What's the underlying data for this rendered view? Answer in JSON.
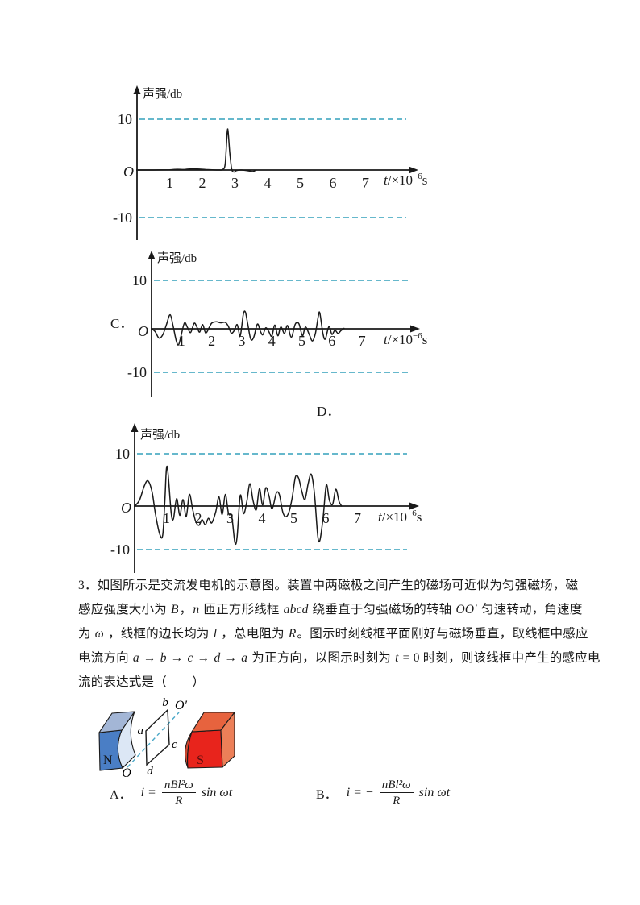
{
  "option_labels": {
    "c": "C．",
    "d": "D．"
  },
  "axis_text": {
    "y_label": "声强/db",
    "x_prefix": "t",
    "x_mid": "/×10",
    "x_sup": "−6",
    "x_unit": "s",
    "origin": "O"
  },
  "colors": {
    "dash": "#33a0bc",
    "ink": "#1a1a1a"
  },
  "chart_data": [
    {
      "type": "line",
      "id": "waveform-top",
      "option": "",
      "ylabel": "声强/db",
      "xlabel": "t/×10⁻⁶s",
      "x_ticks": [
        1,
        2,
        3,
        4,
        5,
        6,
        7
      ],
      "ref_lines": [
        10,
        -10
      ],
      "xlim": [
        0,
        7.6
      ],
      "ylim": [
        -13,
        13
      ],
      "points": [
        [
          0,
          0
        ],
        [
          0.5,
          0
        ],
        [
          1.0,
          0.05
        ],
        [
          1.2,
          0.15
        ],
        [
          1.45,
          0.1
        ],
        [
          1.6,
          0.2
        ],
        [
          1.85,
          0.2
        ],
        [
          2.1,
          0.1
        ],
        [
          2.3,
          0.05
        ],
        [
          2.5,
          0
        ],
        [
          2.62,
          0.1
        ],
        [
          2.7,
          1.2
        ],
        [
          2.76,
          7.3
        ],
        [
          2.79,
          7.6
        ],
        [
          2.84,
          3.5
        ],
        [
          2.9,
          0.2
        ],
        [
          2.97,
          -0.4
        ],
        [
          3.05,
          -0.1
        ],
        [
          3.2,
          0
        ],
        [
          3.45,
          -0.2
        ],
        [
          3.55,
          -0.3
        ],
        [
          3.65,
          0
        ]
      ]
    },
    {
      "type": "line",
      "id": "waveform-C",
      "option": "C．",
      "ylabel": "声强/db",
      "xlabel": "t/×10⁻⁶s",
      "x_ticks": [
        1,
        2,
        3,
        4,
        5,
        6,
        7
      ],
      "ref_lines": [
        10,
        -10
      ],
      "xlim": [
        0,
        7.6
      ],
      "ylim": [
        -13,
        13
      ],
      "points": [
        [
          0,
          0
        ],
        [
          0.12,
          -0.6
        ],
        [
          0.25,
          -2.0
        ],
        [
          0.38,
          -1.2
        ],
        [
          0.5,
          1.0
        ],
        [
          0.62,
          3.0
        ],
        [
          0.72,
          0.5
        ],
        [
          0.82,
          -2.5
        ],
        [
          0.9,
          -3.4
        ],
        [
          1.0,
          -1.0
        ],
        [
          1.1,
          1.3
        ],
        [
          1.2,
          0.2
        ],
        [
          1.3,
          -0.8
        ],
        [
          1.42,
          1.2
        ],
        [
          1.52,
          0.2
        ],
        [
          1.6,
          -0.7
        ],
        [
          1.7,
          0.9
        ],
        [
          1.8,
          -0.9
        ],
        [
          1.92,
          0.3
        ],
        [
          2.0,
          1.2
        ],
        [
          2.15,
          1.5
        ],
        [
          2.3,
          1.3
        ],
        [
          2.45,
          1.4
        ],
        [
          2.55,
          0.6
        ],
        [
          2.65,
          -0.9
        ],
        [
          2.75,
          -0.4
        ],
        [
          2.85,
          0.9
        ],
        [
          2.95,
          -1.5
        ],
        [
          3.05,
          3.0
        ],
        [
          3.12,
          3.6
        ],
        [
          3.2,
          1.0
        ],
        [
          3.3,
          -2.2
        ],
        [
          3.4,
          -1.8
        ],
        [
          3.52,
          1.0
        ],
        [
          3.62,
          -0.5
        ],
        [
          3.7,
          -1.3
        ],
        [
          3.8,
          0.2
        ],
        [
          3.9,
          -0.6
        ],
        [
          4.0,
          -1.6
        ],
        [
          4.1,
          0.8
        ],
        [
          4.2,
          -1.5
        ],
        [
          4.3,
          0.4
        ],
        [
          4.42,
          -1.0
        ],
        [
          4.52,
          0.7
        ],
        [
          4.65,
          -1.8
        ],
        [
          4.78,
          1.0
        ],
        [
          4.9,
          1.1
        ],
        [
          5.02,
          -1.5
        ],
        [
          5.12,
          0.4
        ],
        [
          5.25,
          -1.3
        ],
        [
          5.35,
          -2.6
        ],
        [
          5.45,
          -1.0
        ],
        [
          5.55,
          2.8
        ],
        [
          5.6,
          3.3
        ],
        [
          5.7,
          -1.0
        ],
        [
          5.78,
          -2.2
        ],
        [
          5.9,
          0.5
        ],
        [
          6.0,
          -1.2
        ],
        [
          6.1,
          -0.3
        ],
        [
          6.2,
          -1.0
        ],
        [
          6.3,
          -0.4
        ],
        [
          6.4,
          0.1
        ]
      ]
    },
    {
      "type": "line",
      "id": "waveform-D",
      "option": "D．",
      "ylabel": "声强/db",
      "xlabel": "t/×10⁻⁶s",
      "x_ticks": [
        1,
        2,
        3,
        4,
        5,
        6,
        7
      ],
      "ref_lines": [
        10,
        -10
      ],
      "xlim": [
        0,
        7.6
      ],
      "ylim": [
        -13,
        13
      ],
      "points": [
        [
          0,
          0
        ],
        [
          0.15,
          1.2
        ],
        [
          0.3,
          4.2
        ],
        [
          0.42,
          5.4
        ],
        [
          0.55,
          3.0
        ],
        [
          0.65,
          -1.5
        ],
        [
          0.78,
          -5.8
        ],
        [
          0.88,
          -6.3
        ],
        [
          0.95,
          1.0
        ],
        [
          1.0,
          8.0
        ],
        [
          1.05,
          7.0
        ],
        [
          1.15,
          -1.5
        ],
        [
          1.22,
          -2.7
        ],
        [
          1.32,
          1.6
        ],
        [
          1.42,
          -2.0
        ],
        [
          1.52,
          1.4
        ],
        [
          1.62,
          -2.3
        ],
        [
          1.72,
          2.5
        ],
        [
          1.82,
          -0.6
        ],
        [
          1.92,
          -3.3
        ],
        [
          2.02,
          -4.1
        ],
        [
          2.12,
          -2.9
        ],
        [
          2.22,
          -4.0
        ],
        [
          2.32,
          -2.6
        ],
        [
          2.42,
          -3.6
        ],
        [
          2.55,
          -1.2
        ],
        [
          2.65,
          2.0
        ],
        [
          2.75,
          -1.8
        ],
        [
          2.85,
          2.5
        ],
        [
          2.95,
          -1.6
        ],
        [
          3.05,
          -2.2
        ],
        [
          3.15,
          -7.8
        ],
        [
          3.22,
          -6.5
        ],
        [
          3.32,
          2.3
        ],
        [
          3.42,
          -1.6
        ],
        [
          3.52,
          0.8
        ],
        [
          3.62,
          4.8
        ],
        [
          3.72,
          1.2
        ],
        [
          3.82,
          -0.8
        ],
        [
          3.92,
          3.7
        ],
        [
          4.02,
          0.2
        ],
        [
          4.12,
          3.9
        ],
        [
          4.22,
          2.2
        ],
        [
          4.32,
          -0.6
        ],
        [
          4.45,
          2.8
        ],
        [
          4.55,
          2.4
        ],
        [
          4.65,
          -1.2
        ],
        [
          4.75,
          -2.3
        ],
        [
          4.85,
          -1.2
        ],
        [
          4.95,
          1.8
        ],
        [
          5.05,
          6.2
        ],
        [
          5.15,
          6.0
        ],
        [
          5.25,
          3.2
        ],
        [
          5.35,
          1.4
        ],
        [
          5.45,
          4.8
        ],
        [
          5.55,
          6.8
        ],
        [
          5.65,
          2.5
        ],
        [
          5.75,
          -6.2
        ],
        [
          5.82,
          -7.3
        ],
        [
          5.92,
          -2.5
        ],
        [
          6.02,
          4.5
        ],
        [
          6.12,
          1.2
        ],
        [
          6.22,
          0.4
        ],
        [
          6.32,
          3.6
        ],
        [
          6.42,
          1.0
        ],
        [
          6.5,
          0
        ]
      ]
    }
  ],
  "question": {
    "number": "3",
    "lines": [
      [
        {
          "t": "3．如图所示是交流发电机的示意图。装置中两磁极之间产生的磁场可近似为匀强磁场，磁"
        }
      ],
      [
        {
          "t": "感应强度大小为 "
        },
        {
          "t": "B",
          "i": 1
        },
        {
          "t": "，"
        },
        {
          "t": "n",
          "i": 1
        },
        {
          "t": " 匝正方形线框 "
        },
        {
          "t": "abcd",
          "i": 1
        },
        {
          "t": " 绕垂直于匀强磁场的转轴 "
        },
        {
          "t": "OO′",
          "i": 1
        },
        {
          "t": " 匀速转动，角速度"
        }
      ],
      [
        {
          "t": "为 "
        },
        {
          "t": "ω",
          "i": 1
        },
        {
          "t": " ，线框的边长均为 "
        },
        {
          "t": "l",
          "i": 1
        },
        {
          "t": " ，总电阻为 "
        },
        {
          "t": "R",
          "i": 1
        },
        {
          "t": "。图示时刻线框平面刚好与磁场垂直，取线框中感应"
        }
      ],
      [
        {
          "t": "电流方向 "
        },
        {
          "t": "a",
          "i": 1
        },
        {
          "t": " → "
        },
        {
          "t": "b",
          "i": 1
        },
        {
          "t": " → "
        },
        {
          "t": "c",
          "i": 1
        },
        {
          "t": " → "
        },
        {
          "t": "d",
          "i": 1
        },
        {
          "t": " → "
        },
        {
          "t": "a",
          "i": 1
        },
        {
          "t": " 为正方向，以图示时刻为 "
        },
        {
          "t": "t",
          "i": 1
        },
        {
          "t": " = 0 时刻，则该线框中产生的感应电"
        }
      ],
      [
        {
          "t": "流的表达式是（　　）"
        }
      ]
    ]
  },
  "figure": {
    "labels": {
      "N": "N",
      "S": "S",
      "a": "a",
      "b": "b",
      "c": "c",
      "d": "d",
      "O": "O",
      "O_prime": "O′"
    },
    "colors": {
      "n_front": "#4a7ec5",
      "n_top": "#a3b6d6",
      "n_pole": "#dce7f5",
      "s_front": "#e8241c",
      "s_top": "#e7633e",
      "s_side": "#ec7f58",
      "s_pole": "#cf4930",
      "axis_dash": "#4aa8c8"
    }
  },
  "options": [
    {
      "label": "A．",
      "lhs": "i = ",
      "numerator": "nBl²ω",
      "denominator": "R",
      "suffix": "sin ωt"
    },
    {
      "label": "B．",
      "lhs": "i = −",
      "numerator": "nBl²ω",
      "denominator": "R",
      "suffix": "sin ωt"
    }
  ]
}
